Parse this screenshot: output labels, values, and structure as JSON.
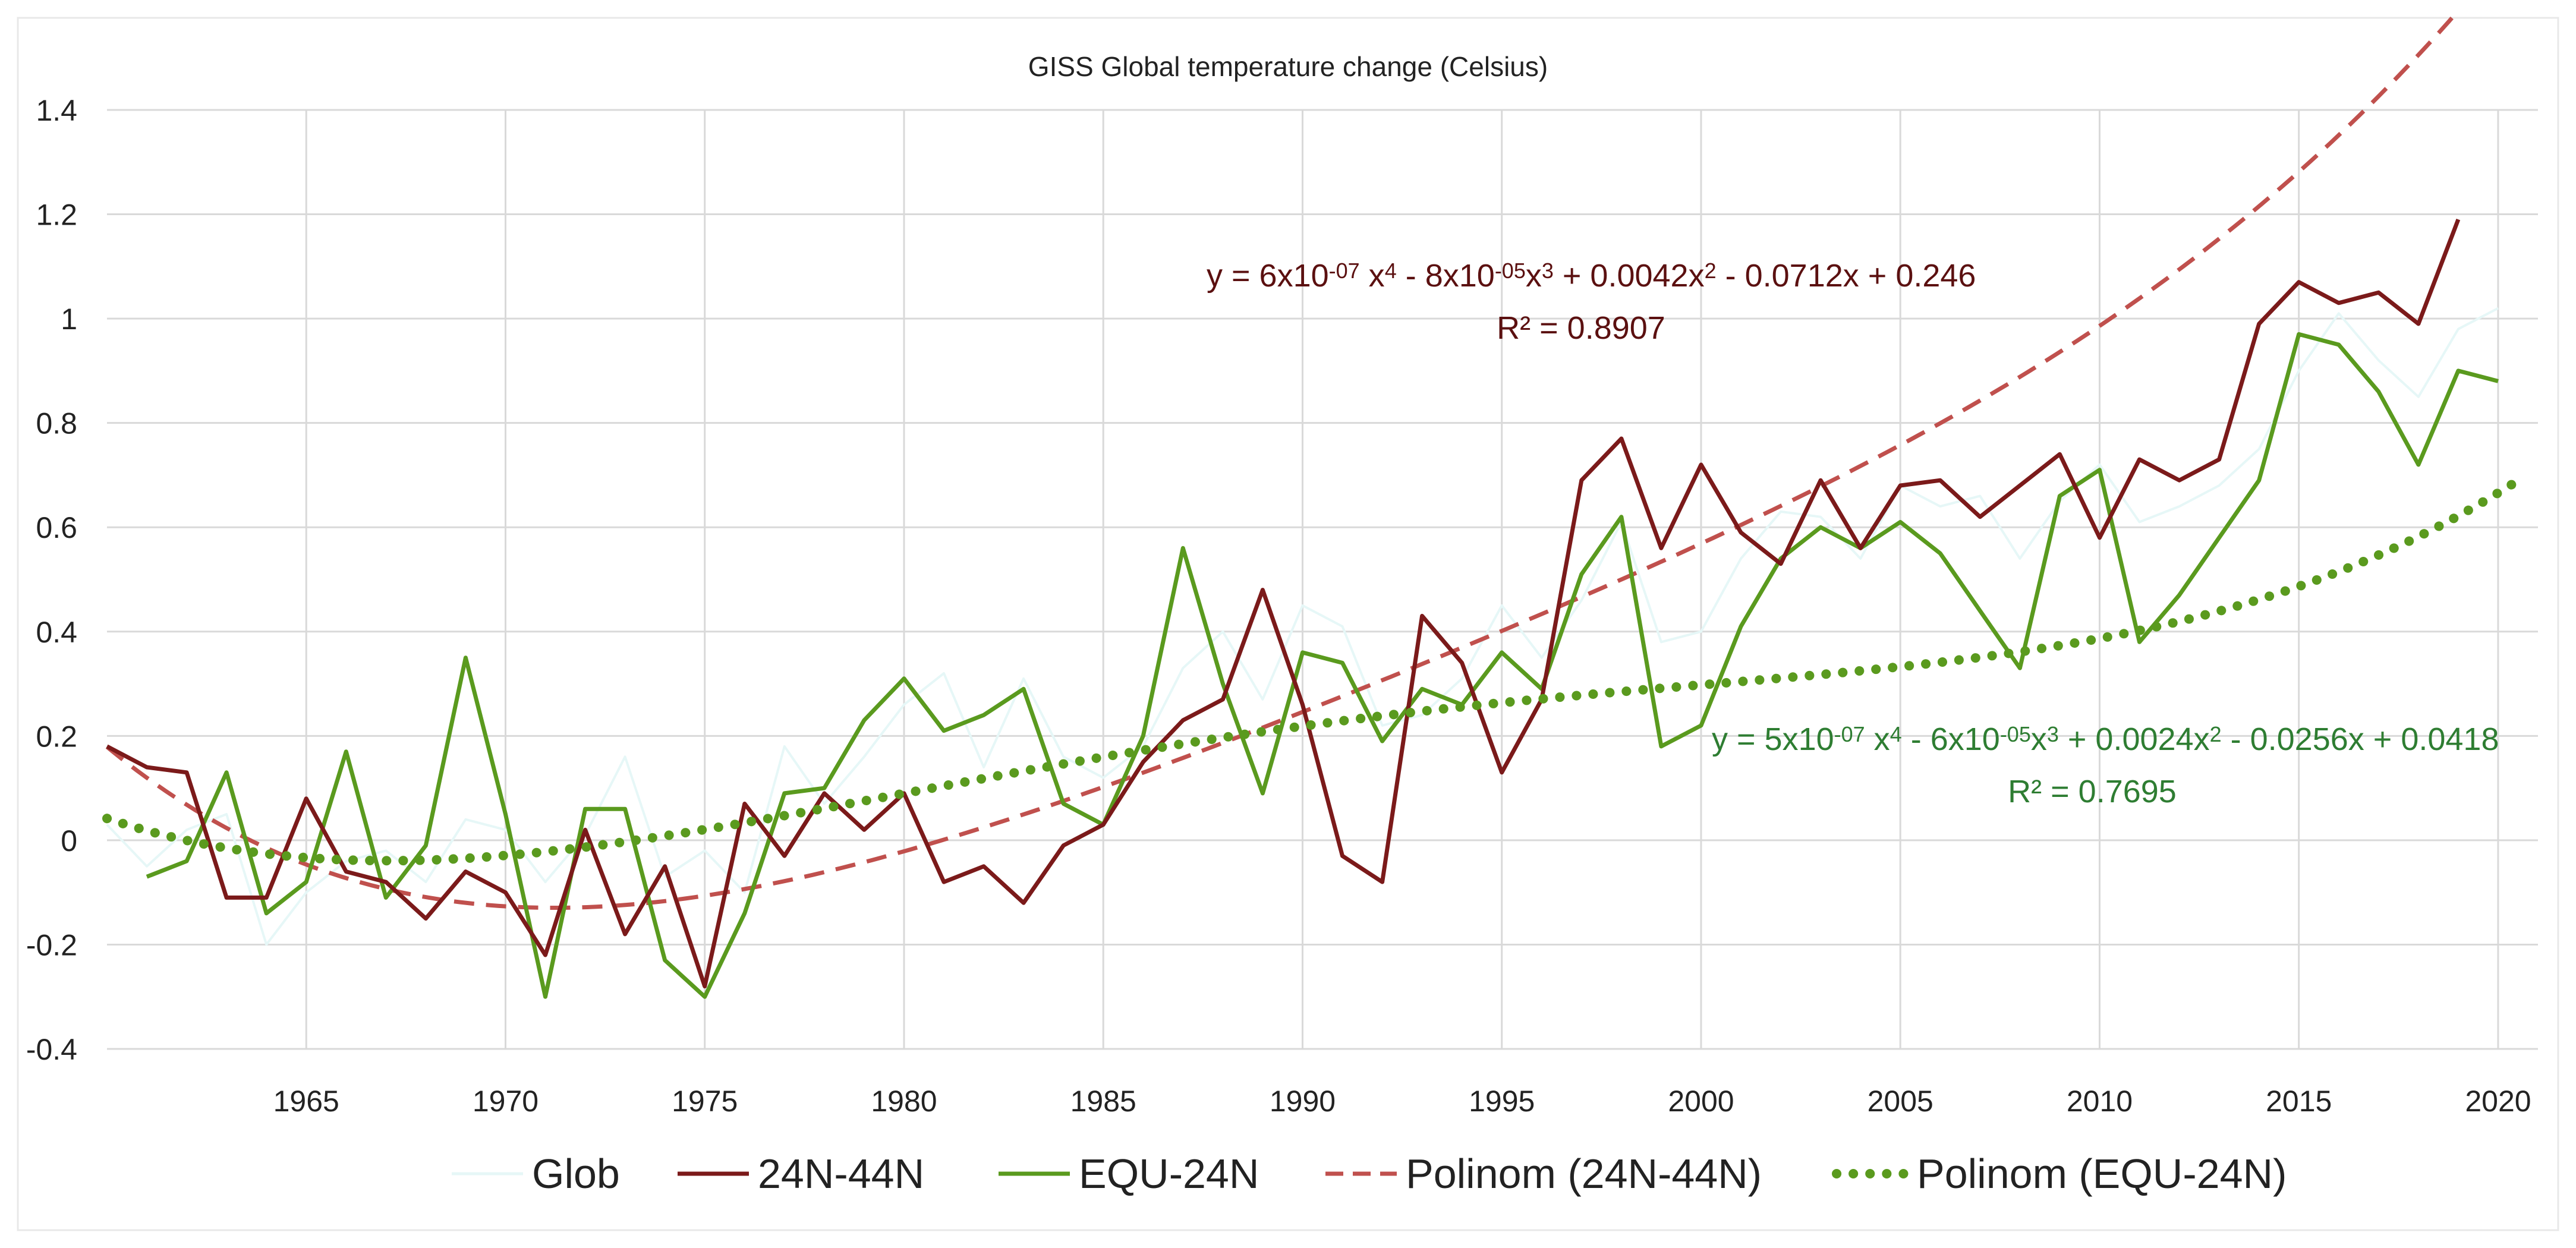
{
  "chart_data": {
    "type": "line",
    "title": "GISS Global temperature change (Celsius)",
    "xlabel": "",
    "ylabel": "",
    "xlim": [
      1960,
      2021
    ],
    "ylim": [
      -0.4,
      1.4
    ],
    "y_ticks": [
      -0.4,
      -0.2,
      0,
      0.2,
      0.4,
      0.6,
      0.8,
      1,
      1.2,
      1.4
    ],
    "y_tick_labels": [
      "-0.4",
      "-0.2",
      "0",
      "0.2",
      "0.4",
      "0.6",
      "0.8",
      "1",
      "1.2",
      "1.4"
    ],
    "x_ticks": [
      1965,
      1970,
      1975,
      1980,
      1985,
      1990,
      1995,
      2000,
      2005,
      2010,
      2015,
      2020
    ],
    "x_tick_labels": [
      "1965",
      "1970",
      "1975",
      "1980",
      "1985",
      "1990",
      "1995",
      "2000",
      "2005",
      "2010",
      "2015",
      "2020"
    ],
    "grid": "horizontal and vertical",
    "legend_position": "bottom",
    "x": [
      1960,
      1961,
      1962,
      1963,
      1964,
      1965,
      1966,
      1967,
      1968,
      1969,
      1970,
      1971,
      1972,
      1973,
      1974,
      1975,
      1976,
      1977,
      1978,
      1979,
      1980,
      1981,
      1982,
      1983,
      1984,
      1985,
      1986,
      1987,
      1988,
      1989,
      1990,
      1991,
      1992,
      1993,
      1994,
      1995,
      1996,
      1997,
      1998,
      1999,
      2000,
      2001,
      2002,
      2003,
      2004,
      2005,
      2006,
      2007,
      2008,
      2009,
      2010,
      2011,
      2012,
      2013,
      2014,
      2015,
      2016,
      2017,
      2018,
      2019,
      2020
    ],
    "series": [
      {
        "name": "Glob",
        "color": "#e6f7f7",
        "style": "solid",
        "values": [
          0.03,
          -0.05,
          0.02,
          0.05,
          -0.2,
          -0.1,
          -0.04,
          -0.02,
          -0.08,
          0.04,
          0.02,
          -0.08,
          0.01,
          0.16,
          -0.07,
          -0.02,
          -0.1,
          0.18,
          0.07,
          0.16,
          0.26,
          0.32,
          0.14,
          0.31,
          0.16,
          0.12,
          0.18,
          0.33,
          0.4,
          0.27,
          0.45,
          0.41,
          0.22,
          0.24,
          0.31,
          0.45,
          0.35,
          0.46,
          0.61,
          0.38,
          0.4,
          0.54,
          0.63,
          0.62,
          0.54,
          0.68,
          0.64,
          0.66,
          0.54,
          0.65,
          0.72,
          0.61,
          0.64,
          0.68,
          0.75,
          0.9,
          1.01,
          0.92,
          0.85,
          0.98,
          1.02
        ]
      },
      {
        "name": "24N-44N",
        "color": "#7b1a1a",
        "style": "solid",
        "values": [
          0.18,
          0.14,
          0.13,
          -0.11,
          -0.11,
          0.08,
          -0.06,
          -0.08,
          -0.15,
          -0.06,
          -0.1,
          -0.22,
          0.02,
          -0.18,
          -0.05,
          -0.28,
          0.07,
          -0.03,
          0.09,
          0.02,
          0.09,
          -0.08,
          -0.05,
          -0.12,
          -0.01,
          0.03,
          0.15,
          0.23,
          0.27,
          0.48,
          0.26,
          -0.03,
          -0.08,
          0.43,
          0.34,
          0.13,
          0.27,
          0.69,
          0.77,
          0.56,
          0.72,
          0.59,
          0.53,
          0.69,
          0.56,
          0.68,
          0.69,
          0.62,
          0.68,
          0.74,
          0.58,
          0.73,
          0.69,
          0.73,
          0.99,
          1.07,
          1.03,
          1.05,
          0.99,
          1.19,
          null
        ]
      },
      {
        "name": "EQU-24N",
        "color": "#5a9a1e",
        "style": "solid",
        "values": [
          null,
          -0.07,
          -0.04,
          0.13,
          -0.14,
          -0.08,
          0.17,
          -0.11,
          -0.01,
          0.35,
          0.05,
          -0.3,
          0.06,
          0.06,
          -0.23,
          -0.3,
          -0.14,
          0.09,
          0.1,
          0.23,
          0.31,
          0.21,
          0.24,
          0.29,
          0.07,
          0.03,
          0.2,
          0.56,
          0.3,
          0.09,
          0.36,
          0.34,
          0.19,
          0.29,
          0.26,
          0.36,
          0.29,
          0.51,
          0.62,
          0.18,
          0.22,
          0.41,
          0.54,
          0.6,
          0.56,
          0.61,
          0.55,
          0.44,
          0.33,
          0.66,
          0.71,
          0.38,
          0.47,
          0.58,
          0.69,
          0.97,
          0.95,
          0.86,
          0.72,
          0.9,
          0.88
        ]
      },
      {
        "name": "Polinom (24N-44N)",
        "color": "#c0504d",
        "style": "dashed",
        "equation": "y = 6x10-07 x4 - 8x10-05x3 + 0.0042x2 - 0.0712x + 0.246",
        "r2": "R² = 0.8907",
        "poly": {
          "coef": [
            0.246,
            -0.0712,
            0.0042,
            -8e-05,
            6e-07
          ],
          "x0": 1959,
          "x_start": 1960,
          "x_end": 2019
        }
      },
      {
        "name": "Polinom (EQU-24N)",
        "color": "#5a9a1e",
        "style": "dotted",
        "equation": "y = 5x10-07 x4 - 6x10-05x3 + 0.0024x2 - 0.0256x + 0.0418",
        "r2": "R² = 0.7695",
        "poly": {
          "coef": [
            0.0418,
            -0.0256,
            0.0024,
            -6e-05,
            5e-07
          ],
          "x0": 1960,
          "x_start": 1960,
          "x_end": 2020.5
        }
      }
    ],
    "annotations": [
      {
        "series": "Polinom (24N-44N)",
        "color": "#5b1010",
        "eq_parts": [
          [
            "y = 6x10",
            ""
          ],
          [
            "-07",
            "sup"
          ],
          [
            " x",
            ""
          ],
          [
            "4",
            "sup"
          ],
          [
            " - 8x10",
            ""
          ],
          [
            "-05",
            "sup"
          ],
          [
            "x",
            ""
          ],
          [
            "3",
            "sup"
          ],
          [
            " + 0.0042x",
            ""
          ],
          [
            "2",
            "sup"
          ],
          [
            " - 0.0712x + 0.246",
            ""
          ]
        ],
        "r2": "R² = 0.8907"
      },
      {
        "series": "Polinom (EQU-24N)",
        "color": "#2e7d32",
        "eq_parts": [
          [
            "y = 5x10",
            ""
          ],
          [
            "-07",
            "sup"
          ],
          [
            " x",
            ""
          ],
          [
            "4",
            "sup"
          ],
          [
            " - 6x10",
            ""
          ],
          [
            "-05",
            "sup"
          ],
          [
            "x",
            ""
          ],
          [
            "3",
            "sup"
          ],
          [
            " + 0.0024x",
            ""
          ],
          [
            "2",
            "sup"
          ],
          [
            " - 0.0256x + 0.0418",
            ""
          ]
        ],
        "r2": "R² = 0.7695"
      }
    ]
  }
}
